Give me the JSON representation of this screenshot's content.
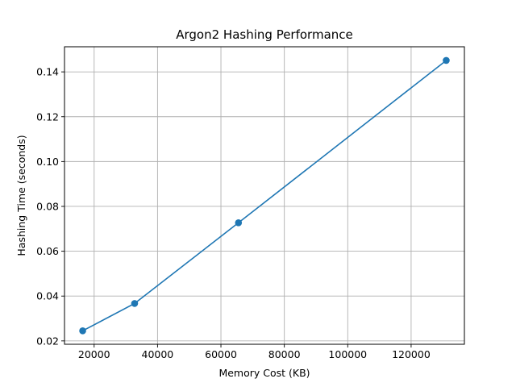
{
  "chart_data": {
    "type": "line",
    "title": "Argon2 Hashing Performance",
    "xlabel": "Memory Cost (KB)",
    "ylabel": "Hashing Time (seconds)",
    "x": [
      16384,
      32768,
      65536,
      131072
    ],
    "series": [
      {
        "values": [
          0.0245,
          0.0367,
          0.0727,
          0.1451
        ]
      }
    ],
    "xlim": [
      10650,
      136806
    ],
    "ylim": [
      0.0185,
      0.1512
    ],
    "xticks": [
      20000,
      40000,
      60000,
      80000,
      100000,
      120000
    ],
    "xtick_labels": [
      "20000",
      "40000",
      "60000",
      "80000",
      "100000",
      "120000"
    ],
    "yticks": [
      0.02,
      0.04,
      0.06,
      0.08,
      0.1,
      0.12,
      0.14
    ],
    "ytick_labels": [
      "0.02",
      "0.04",
      "0.06",
      "0.08",
      "0.10",
      "0.12",
      "0.14"
    ],
    "grid": true,
    "markers": "circle",
    "colors": {
      "line": "#1f77b4",
      "grid": "#b0b0b0",
      "axis": "#000000"
    }
  }
}
